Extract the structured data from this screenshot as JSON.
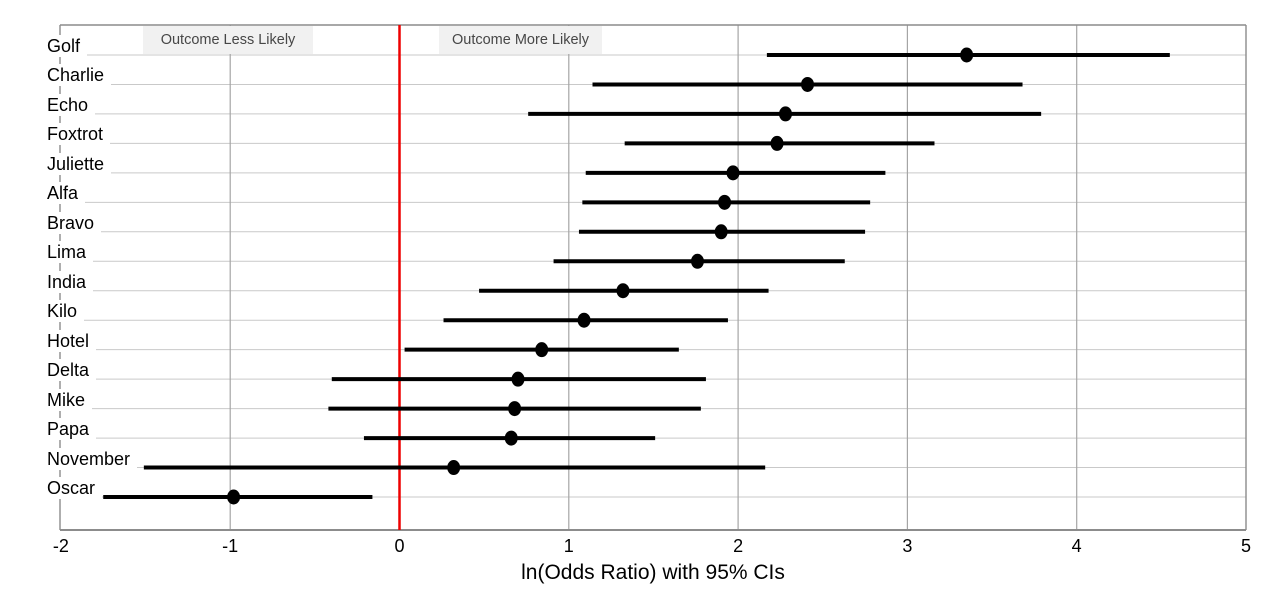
{
  "chart_data": {
    "type": "scatter",
    "subtype": "forest-plot-with-95ci",
    "title": "",
    "xlabel": "ln(Odds Ratio) with 95% CIs",
    "ylabel": "",
    "xlim": [
      -2,
      5
    ],
    "xticks": [
      "-2",
      "-1",
      "0",
      "1",
      "2",
      "3",
      "4",
      "5"
    ],
    "grid": "on",
    "legend": "none",
    "reference_line": {
      "x": 0,
      "color": "#ee0000"
    },
    "annotations": [
      {
        "text": "Outcome Less Likely",
        "side": "left-of-zero"
      },
      {
        "text": "Outcome More Likely",
        "side": "right-of-zero"
      }
    ],
    "rows": [
      {
        "label": "Golf",
        "value": 3.35,
        "ci_low": 2.17,
        "ci_high": 4.55
      },
      {
        "label": "Charlie",
        "value": 2.41,
        "ci_low": 1.14,
        "ci_high": 3.68
      },
      {
        "label": "Echo",
        "value": 2.28,
        "ci_low": 0.76,
        "ci_high": 3.79
      },
      {
        "label": "Foxtrot",
        "value": 2.23,
        "ci_low": 1.33,
        "ci_high": 3.16
      },
      {
        "label": "Juliette",
        "value": 1.97,
        "ci_low": 1.1,
        "ci_high": 2.87
      },
      {
        "label": "Alfa",
        "value": 1.92,
        "ci_low": 1.08,
        "ci_high": 2.78
      },
      {
        "label": "Bravo",
        "value": 1.9,
        "ci_low": 1.06,
        "ci_high": 2.75
      },
      {
        "label": "Lima",
        "value": 1.76,
        "ci_low": 0.91,
        "ci_high": 2.63
      },
      {
        "label": "India",
        "value": 1.32,
        "ci_low": 0.47,
        "ci_high": 2.18
      },
      {
        "label": "Kilo",
        "value": 1.09,
        "ci_low": 0.26,
        "ci_high": 1.94
      },
      {
        "label": "Hotel",
        "value": 0.84,
        "ci_low": 0.03,
        "ci_high": 1.65
      },
      {
        "label": "Delta",
        "value": 0.7,
        "ci_low": -0.4,
        "ci_high": 1.81
      },
      {
        "label": "Mike",
        "value": 0.68,
        "ci_low": -0.42,
        "ci_high": 1.78
      },
      {
        "label": "Papa",
        "value": 0.66,
        "ci_low": -0.21,
        "ci_high": 1.51
      },
      {
        "label": "November",
        "value": 0.32,
        "ci_low": -1.51,
        "ci_high": 2.16
      },
      {
        "label": "Oscar",
        "value": -0.98,
        "ci_low": -1.75,
        "ci_high": -0.16
      }
    ],
    "colors": {
      "point": "#000000",
      "ci_line": "#000000",
      "zero_line": "#ee0000",
      "v_gridline": "#a5a5a5",
      "row_gridline": "#c9c9c9",
      "border": "#8c8c8c",
      "annotation_bg": "#f1f1f1",
      "annotation_text": "#474747"
    }
  }
}
